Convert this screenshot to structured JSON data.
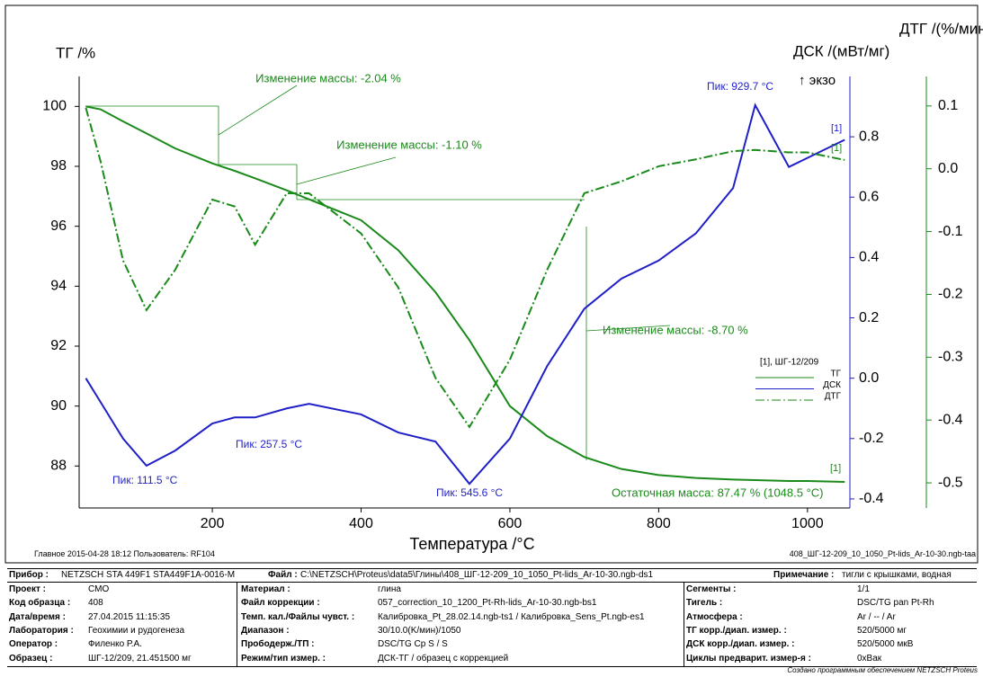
{
  "chart_data": {
    "type": "line",
    "xlabel": "Температура /°C",
    "ylabel": "ТГ /%",
    "y2label": "ДСК /(мВт/мг)",
    "y2note": "↑ экзо",
    "y3label": "ДТГ /(%/мин)",
    "x": [
      30,
      50,
      80,
      111.5,
      150,
      200,
      230,
      257.5,
      300,
      330,
      400,
      450,
      500,
      545.6,
      600,
      650,
      700,
      750,
      800,
      850,
      900,
      929.7,
      975,
      1000,
      1050
    ],
    "xlim": [
      21,
      1057
    ],
    "xticks": [
      200,
      400,
      600,
      800,
      1000
    ],
    "ylim": [
      86.6,
      101
    ],
    "yticks": [
      88,
      90,
      92,
      94,
      96,
      98,
      100
    ],
    "y2lim": [
      -0.43,
      1.0
    ],
    "y2ticks": [
      -0.4,
      -0.2,
      {
        "value": 0,
        "label": "0.0"
      },
      0.2,
      0.4,
      0.6,
      0.8
    ],
    "y3lim": [
      -0.54,
      0.147
    ],
    "y3ticks": [
      -0.5,
      -0.4,
      -0.3,
      -0.2,
      -0.1,
      {
        "value": 0,
        "label": "0.0"
      },
      0.1
    ],
    "legend_title": "[1], ШГ-12/209",
    "series": [
      {
        "name": "ТГ",
        "color": "#1a8a1a",
        "axis": "y",
        "style": "solid",
        "values": [
          100,
          99.9,
          99.5,
          99.1,
          98.6,
          98.1,
          97.85,
          97.6,
          97.2,
          96.9,
          96.2,
          95.2,
          93.8,
          92.2,
          90.0,
          89.0,
          88.3,
          87.9,
          87.7,
          87.6,
          87.55,
          87.53,
          87.5,
          87.5,
          87.47
        ]
      },
      {
        "name": "ДСК",
        "color": "#1f1fc8",
        "axis": "y2",
        "style": "solid",
        "values": [
          0.0,
          -0.08,
          -0.2,
          -0.29,
          -0.24,
          -0.15,
          -0.13,
          -0.13,
          -0.1,
          -0.085,
          -0.12,
          -0.18,
          -0.21,
          -0.35,
          -0.2,
          0.04,
          0.23,
          0.33,
          0.39,
          0.48,
          0.63,
          0.905,
          0.7,
          0.73,
          0.79
        ]
      },
      {
        "name": "ДТГ",
        "color": "#1a8a1a",
        "axis": "y3",
        "style": "dashdot",
        "values": [
          0.097,
          0.011,
          -0.146,
          -0.225,
          -0.161,
          -0.049,
          -0.06,
          -0.121,
          -0.039,
          -0.039,
          -0.103,
          -0.189,
          -0.333,
          -0.411,
          -0.304,
          -0.161,
          -0.039,
          -0.02,
          0.004,
          0.015,
          0.028,
          0.03,
          0.026,
          0.026,
          0.014
        ]
      }
    ],
    "annotations": [
      {
        "text": "Изменение массы: -2.04 %",
        "color": "#1a8a1a"
      },
      {
        "text": "Изменение массы: -1.10 %",
        "color": "#1a8a1a"
      },
      {
        "text": "Изменение массы: -8.70 %",
        "color": "#1a8a1a"
      },
      {
        "text": "Остаточная масса: 87.47 % (1048.5 °C)",
        "color": "#1a8a1a"
      },
      {
        "text": "Пик: 111.5 °C",
        "color": "#1f1fc8"
      },
      {
        "text": "Пик: 257.5 °C",
        "color": "#1f1fc8"
      },
      {
        "text": "Пик: 545.6 °C",
        "color": "#1f1fc8"
      },
      {
        "text": "Пик: 929.7 °C",
        "color": "#1f1fc8"
      },
      {
        "text": "[1]",
        "color": "#1f1fc8"
      },
      {
        "text": "[1]",
        "color": "#1a8a1a"
      },
      {
        "text": "[1]",
        "color": "#1a8a1a"
      }
    ]
  },
  "footer": {
    "left": "Главное    2015-04-28 18:12    Пользователь: RF104",
    "right": "408_ШГ-12-209_10_1050_Pt-lids_Ar-10-30.ngb-taa",
    "credit": "Создано программным обеспечением NETZSCH Proteus"
  },
  "info": {
    "header": [
      [
        "Прибор :",
        "NETZSCH STA 449F1 STA449F1A-0016-M"
      ],
      [
        "Файл :",
        "C:\\NETZSCH\\Proteus\\data5\\Глины\\408_ШГ-12-209_10_1050_Pt-lids_Ar-10-30.ngb-ds1"
      ],
      [
        "Примечание :",
        "тигли с крышками, водная"
      ]
    ],
    "columns": [
      [
        [
          "Проект :",
          "СМО"
        ],
        [
          "Код образца :",
          "408"
        ],
        [
          "Дата/время :",
          "27.04.2015 11:15:35"
        ],
        [
          "Лаборатория :",
          "Геохимии и рудогенеза"
        ],
        [
          "Оператор :",
          "Филенко Р.А."
        ],
        [
          "Образец :",
          "ШГ-12/209, 21.451500 мг"
        ]
      ],
      [
        [
          "Материал :",
          "глина"
        ],
        [
          "Файл коррекции :",
          "057_correction_10_1200_Pt-Rh-lids_Ar-10-30.ngb-bs1"
        ],
        [
          "Темп. кал./Файлы чувст. :",
          "Калибровка_Pt_28.02.14.ngb-ts1 / Калибровка_Sens_Pt.ngb-es1"
        ],
        [
          "Диапазон :",
          "30/10.0(K/мин)/1050"
        ],
        [
          "Прободерж./ТП :",
          "DSC/TG Cp S / S"
        ],
        [
          "Режим/тип измер. :",
          "ДСК-ТГ / образец с коррекцией"
        ]
      ],
      [
        [
          "Сегменты :",
          "1/1"
        ],
        [
          "Тигель :",
          "DSC/TG pan Pt-Rh"
        ],
        [
          "Атмосфера :",
          "Ar / -- / Ar"
        ],
        [
          "ТГ корр./диап. измер. :",
          "520/5000 мг"
        ],
        [
          "ДСК корр./диап. измер. :",
          "520/5000 мкВ"
        ],
        [
          "Циклы предварит. измер-я :",
          "0xВак"
        ]
      ]
    ]
  }
}
